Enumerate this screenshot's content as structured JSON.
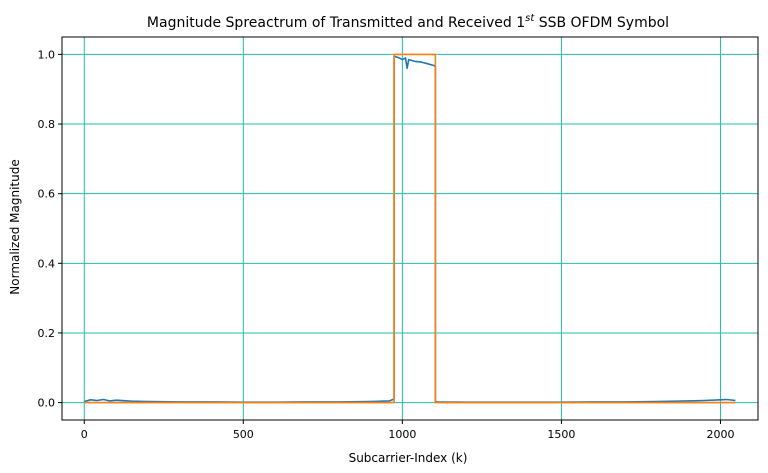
{
  "chart_data": {
    "type": "line",
    "title": "Magnitude Spreactrum of Transmitted and Received 1",
    "title_sup": "st",
    "title_suffix": " SSB OFDM Symbol",
    "xlabel": "Subcarrier-Index (k)",
    "ylabel": "Normalized Magnitude",
    "xlim": [
      -70,
      2118
    ],
    "ylim": [
      -0.05,
      1.05
    ],
    "xticks": [
      0,
      500,
      1000,
      1500,
      2000
    ],
    "yticks": [
      0.0,
      0.2,
      0.4,
      0.6,
      0.8,
      1.0
    ],
    "xtick_labels": [
      "0",
      "500",
      "1000",
      "1500",
      "2000"
    ],
    "ytick_labels": [
      "0.0",
      "0.2",
      "0.4",
      "0.6",
      "0.8",
      "1.0"
    ],
    "grid": true,
    "grid_color": "#1fbfa8",
    "series": [
      {
        "color": "#1f77b4",
        "x": [
          0,
          20,
          40,
          60,
          80,
          100,
          150,
          200,
          300,
          400,
          500,
          600,
          700,
          800,
          900,
          960,
          970,
          974,
          974,
          990,
          1000,
          1010,
          1015,
          1020,
          1040,
          1060,
          1080,
          1100,
          1104,
          1104,
          1110,
          1200,
          1300,
          1400,
          1500,
          1600,
          1700,
          1800,
          1900,
          1950,
          2000,
          2020,
          2047
        ],
        "values": [
          0.003,
          0.008,
          0.006,
          0.009,
          0.005,
          0.007,
          0.004,
          0.003,
          0.002,
          0.002,
          0.001,
          0.001,
          0.002,
          0.002,
          0.003,
          0.005,
          0.009,
          0.01,
          0.995,
          0.99,
          0.985,
          0.99,
          0.96,
          0.985,
          0.98,
          0.978,
          0.973,
          0.968,
          0.965,
          0.003,
          0.002,
          0.001,
          0.001,
          0.001,
          0.001,
          0.002,
          0.002,
          0.003,
          0.005,
          0.006,
          0.008,
          0.009,
          0.006
        ]
      },
      {
        "color": "#ff7f0e",
        "x": [
          0,
          974,
          974,
          1104,
          1104,
          2047
        ],
        "values": [
          0.0,
          0.0,
          1.0,
          1.0,
          0.0,
          0.0
        ]
      }
    ]
  }
}
